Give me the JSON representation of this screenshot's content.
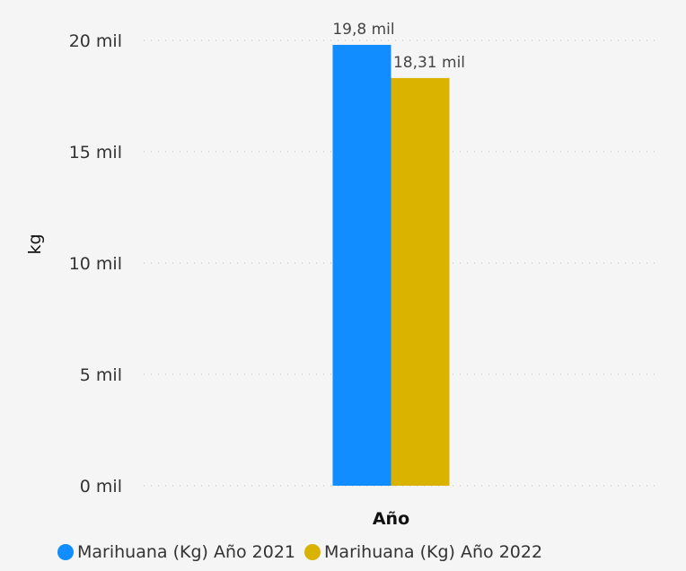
{
  "chart_data": {
    "type": "bar",
    "title": "",
    "xlabel": "",
    "ylabel": "kg",
    "categories": [
      "Año"
    ],
    "ylim": [
      0,
      20000
    ],
    "yticks": [
      {
        "value": 0,
        "label": "0 mil"
      },
      {
        "value": 5000,
        "label": "5 mil"
      },
      {
        "value": 10000,
        "label": "10 mil"
      },
      {
        "value": 15000,
        "label": "15 mil"
      },
      {
        "value": 20000,
        "label": "20 mil"
      }
    ],
    "series": [
      {
        "name": "Marihuana (Kg) Año 2021",
        "values": [
          19800
        ],
        "value_labels": [
          "19,8 mil"
        ],
        "color": "#118DFF"
      },
      {
        "name": "Marihuana (Kg) Año 2022",
        "values": [
          18310
        ],
        "value_labels": [
          "18,31 mil"
        ],
        "color": "#D9B300"
      }
    ],
    "grid": true,
    "legend_position": "bottom-left"
  }
}
